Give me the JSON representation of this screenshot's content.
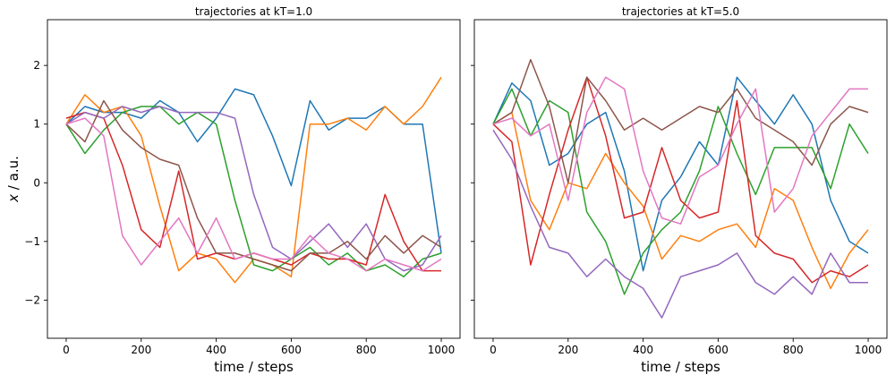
{
  "chart_data": [
    {
      "type": "line",
      "title": "trajectories at kT=1.0",
      "xlabel": "time / steps",
      "ylabel_var": "x",
      "ylabel_unit": " / a.u.",
      "xlim": [
        -50,
        1050
      ],
      "ylim": [
        -2.65,
        2.78
      ],
      "xticks": [
        0,
        200,
        400,
        600,
        800,
        1000
      ],
      "yticks": [
        -2,
        -1,
        0,
        1,
        2
      ],
      "ytick_labels": [
        "−2",
        "−1",
        "0",
        "1",
        "2"
      ],
      "grid": false,
      "x": [
        0,
        50,
        100,
        150,
        200,
        250,
        300,
        350,
        400,
        450,
        500,
        550,
        600,
        650,
        700,
        750,
        800,
        850,
        900,
        950,
        1000
      ],
      "series": [
        {
          "color": "#1f77b4",
          "values": [
            1.0,
            1.3,
            1.2,
            1.2,
            1.1,
            1.4,
            1.2,
            0.7,
            1.1,
            1.6,
            1.5,
            0.8,
            -0.05,
            1.4,
            0.9,
            1.1,
            1.1,
            1.3,
            1.0,
            1.0,
            -1.2
          ]
        },
        {
          "color": "#ff7f0e",
          "values": [
            1.0,
            1.5,
            1.2,
            1.3,
            0.8,
            -0.4,
            -1.5,
            -1.2,
            -1.3,
            -1.7,
            -1.3,
            -1.4,
            -1.6,
            1.0,
            1.0,
            1.1,
            0.9,
            1.3,
            1.0,
            1.3,
            1.8
          ]
        },
        {
          "color": "#2ca02c",
          "values": [
            1.0,
            0.5,
            0.9,
            1.2,
            1.3,
            1.3,
            1.0,
            1.2,
            1.0,
            -0.3,
            -1.4,
            -1.5,
            -1.3,
            -1.1,
            -1.4,
            -1.2,
            -1.5,
            -1.4,
            -1.6,
            -1.3,
            -1.2
          ]
        },
        {
          "color": "#d62728",
          "values": [
            1.1,
            1.2,
            1.1,
            0.3,
            -0.8,
            -1.1,
            0.2,
            -1.3,
            -1.2,
            -1.3,
            -1.2,
            -1.3,
            -1.4,
            -1.2,
            -1.3,
            -1.3,
            -1.4,
            -0.2,
            -1.0,
            -1.5,
            -1.5
          ]
        },
        {
          "color": "#9467bd",
          "values": [
            1.0,
            1.2,
            1.1,
            1.3,
            1.2,
            1.3,
            1.2,
            1.2,
            1.2,
            1.1,
            -0.2,
            -1.1,
            -1.3,
            -1.0,
            -0.7,
            -1.1,
            -0.7,
            -1.3,
            -1.5,
            -1.4,
            -0.9
          ]
        },
        {
          "color": "#8c564b",
          "values": [
            1.0,
            0.7,
            1.4,
            0.9,
            0.6,
            0.4,
            0.3,
            -0.6,
            -1.2,
            -1.2,
            -1.3,
            -1.4,
            -1.5,
            -1.2,
            -1.2,
            -1.0,
            -1.3,
            -0.9,
            -1.2,
            -0.9,
            -1.1
          ]
        },
        {
          "color": "#e377c2",
          "values": [
            1.0,
            1.1,
            0.8,
            -0.9,
            -1.4,
            -1.0,
            -0.6,
            -1.2,
            -0.6,
            -1.3,
            -1.2,
            -1.3,
            -1.3,
            -0.9,
            -1.2,
            -1.3,
            -1.5,
            -1.3,
            -1.4,
            -1.5,
            -1.3
          ]
        }
      ]
    },
    {
      "type": "line",
      "title": "trajectories at kT=5.0",
      "xlabel": "time / steps",
      "xlim": [
        -50,
        1050
      ],
      "ylim": [
        -2.65,
        2.78
      ],
      "xticks": [
        0,
        200,
        400,
        600,
        800,
        1000
      ],
      "yticks": [
        -2,
        -1,
        0,
        1,
        2
      ],
      "sharey": true,
      "grid": false,
      "x": [
        0,
        50,
        100,
        150,
        200,
        250,
        300,
        350,
        400,
        450,
        500,
        550,
        600,
        650,
        700,
        750,
        800,
        850,
        900,
        950,
        1000
      ],
      "series": [
        {
          "color": "#1f77b4",
          "values": [
            1.0,
            1.7,
            1.4,
            0.3,
            0.5,
            1.0,
            1.2,
            0.2,
            -1.5,
            -0.3,
            0.1,
            0.7,
            0.3,
            1.8,
            1.4,
            1.0,
            1.5,
            1.0,
            -0.3,
            -1.0,
            -1.2
          ]
        },
        {
          "color": "#ff7f0e",
          "values": [
            1.0,
            1.2,
            -0.3,
            -0.8,
            0.0,
            -0.1,
            0.5,
            0.0,
            -0.4,
            -1.3,
            -0.9,
            -1.0,
            -0.8,
            -0.7,
            -1.1,
            -0.1,
            -0.3,
            -1.1,
            -1.8,
            -1.2,
            -0.8
          ]
        },
        {
          "color": "#2ca02c",
          "values": [
            1.0,
            1.6,
            0.8,
            1.4,
            1.2,
            -0.5,
            -1.0,
            -1.9,
            -1.2,
            -0.8,
            -0.5,
            0.2,
            1.3,
            0.5,
            -0.2,
            0.6,
            0.6,
            0.6,
            -0.1,
            1.0,
            0.5
          ]
        },
        {
          "color": "#d62728",
          "values": [
            1.0,
            0.7,
            -1.4,
            -0.2,
            0.9,
            1.8,
            0.8,
            -0.6,
            -0.5,
            0.6,
            -0.3,
            -0.6,
            -0.5,
            1.4,
            -0.9,
            -1.2,
            -1.3,
            -1.7,
            -1.5,
            -1.6,
            -1.4
          ]
        },
        {
          "color": "#9467bd",
          "values": [
            0.9,
            0.4,
            -0.4,
            -1.1,
            -1.2,
            -1.6,
            -1.3,
            -1.6,
            -1.8,
            -2.3,
            -1.6,
            -1.5,
            -1.4,
            -1.2,
            -1.7,
            -1.9,
            -1.6,
            -1.9,
            -1.2,
            -1.7,
            -1.7
          ]
        },
        {
          "color": "#8c564b",
          "values": [
            1.0,
            1.2,
            2.1,
            1.3,
            0.0,
            1.8,
            1.4,
            0.9,
            1.1,
            0.9,
            1.1,
            1.3,
            1.2,
            1.6,
            1.1,
            0.9,
            0.7,
            0.3,
            1.0,
            1.3,
            1.2
          ]
        },
        {
          "color": "#e377c2",
          "values": [
            1.0,
            1.1,
            0.8,
            1.0,
            -0.3,
            1.2,
            1.8,
            1.6,
            0.2,
            -0.6,
            -0.7,
            0.1,
            0.3,
            1.0,
            1.6,
            -0.5,
            -0.1,
            0.8,
            1.2,
            1.6,
            1.6
          ]
        }
      ]
    }
  ]
}
